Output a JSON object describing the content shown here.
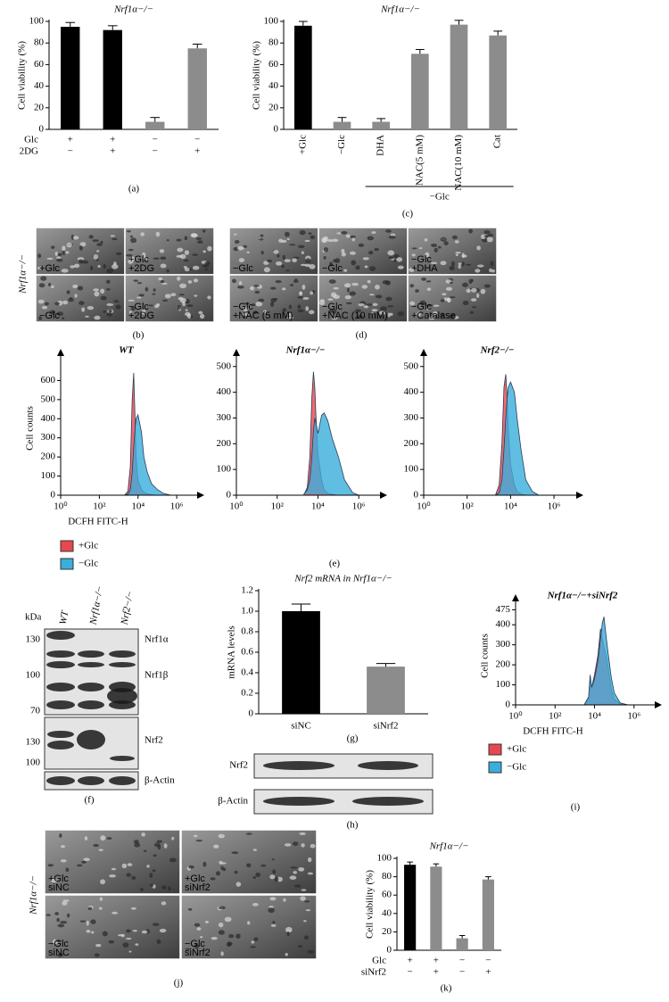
{
  "chart_data": [
    {
      "type": "bar",
      "title": "Nrf1α−/−",
      "ylabel": "Cell viability (%)",
      "ylim": [
        0,
        100
      ],
      "yticks": [
        0,
        20,
        40,
        60,
        80,
        100
      ],
      "values": [
        95,
        92,
        7,
        75
      ],
      "errors": [
        4,
        4,
        4,
        4
      ],
      "colors": [
        "#000000",
        "#000000",
        "#8c8c8c",
        "#8c8c8c"
      ],
      "rows": [
        {
          "label": "Glc",
          "values": [
            "+",
            "+",
            "−",
            "−"
          ]
        },
        {
          "label": "2DG",
          "values": [
            "−",
            "+",
            "−",
            "+"
          ]
        }
      ]
    },
    {
      "type": "bar",
      "title": "Nrf1α−/−",
      "ylabel": "Cell viability (%)",
      "ylim": [
        0,
        100
      ],
      "yticks": [
        0,
        20,
        40,
        60,
        80,
        100
      ],
      "categories": [
        "+Glc",
        "−Glc",
        "DHA",
        "NAC(5 mM)",
        "NAC(10 mM)",
        "Cat"
      ],
      "values": [
        96,
        7,
        7,
        70,
        97,
        87
      ],
      "errors": [
        4,
        4,
        3,
        4,
        4,
        4
      ],
      "colors": [
        "#000000",
        "#8c8c8c",
        "#8c8c8c",
        "#8c8c8c",
        "#8c8c8c",
        "#8c8c8c"
      ],
      "group_label": "−Glc"
    },
    {
      "type": "area",
      "title": "WT",
      "ylabel": "Cell counts",
      "xlabel": "DCFH FITC-H",
      "xlog": true,
      "xlim": [
        1,
        6000000
      ],
      "ylim": [
        0,
        700
      ],
      "yticks": [
        0,
        100,
        200,
        300,
        400,
        500,
        600
      ],
      "xticks": [
        {
          "value": 1,
          "label": "10⁰"
        },
        {
          "value": 100,
          "label": "10²"
        },
        {
          "value": 10000,
          "label": "10⁴"
        },
        {
          "value": 1000000,
          "label": "10⁶"
        }
      ],
      "x": [
        2000,
        3000,
        4000,
        5000,
        6000,
        7000,
        8000,
        10000,
        15000,
        20000,
        30000,
        50000,
        100000,
        200000,
        500000,
        1000000
      ],
      "series": [
        {
          "name": "+Glc",
          "color": "#e8474f",
          "values": [
            0,
            20,
            150,
            500,
            640,
            400,
            200,
            80,
            30,
            15,
            8,
            3,
            0,
            0,
            0,
            0
          ]
        },
        {
          "name": "−Glc",
          "color": "#3aaedc",
          "values": [
            0,
            5,
            30,
            120,
            250,
            350,
            400,
            420,
            330,
            200,
            120,
            60,
            30,
            10,
            0,
            0
          ]
        }
      ]
    },
    {
      "type": "area",
      "title": "Nrf1α−/−",
      "xlog": true,
      "xlim": [
        1,
        6000000
      ],
      "ylim": [
        0,
        520
      ],
      "yticks": [
        0,
        100,
        200,
        300,
        400,
        500
      ],
      "xticks": [
        {
          "value": 1,
          "label": "10⁰"
        },
        {
          "value": 100,
          "label": "10²"
        },
        {
          "value": 10000,
          "label": "10⁴"
        },
        {
          "value": 1000000,
          "label": "10⁶"
        }
      ],
      "x": [
        2000,
        3000,
        4000,
        5000,
        6000,
        7000,
        8000,
        10000,
        15000,
        20000,
        30000,
        50000,
        100000,
        200000,
        500000,
        1000000
      ],
      "series": [
        {
          "color": "#e8474f",
          "values": [
            0,
            30,
            150,
            380,
            480,
            420,
            300,
            160,
            60,
            20,
            8,
            3,
            0,
            0,
            0,
            0
          ]
        },
        {
          "color": "#3aaedc",
          "values": [
            5,
            20,
            60,
            150,
            250,
            300,
            280,
            240,
            310,
            320,
            290,
            220,
            150,
            60,
            10,
            0
          ]
        }
      ]
    },
    {
      "type": "area",
      "title": "Nrf2−/−",
      "xlog": true,
      "xlim": [
        1,
        6000000
      ],
      "ylim": [
        0,
        520
      ],
      "yticks": [
        0,
        100,
        200,
        300,
        400,
        500
      ],
      "xticks": [
        {
          "value": 1,
          "label": "10⁰"
        },
        {
          "value": 100,
          "label": "10²"
        },
        {
          "value": 10000,
          "label": "10⁴"
        },
        {
          "value": 1000000,
          "label": "10⁶"
        }
      ],
      "x": [
        2000,
        3000,
        4000,
        5000,
        6000,
        7000,
        8000,
        10000,
        15000,
        20000,
        30000,
        50000,
        100000,
        200000,
        500000,
        1000000
      ],
      "series": [
        {
          "color": "#e8474f",
          "values": [
            0,
            40,
            200,
            420,
            470,
            380,
            250,
            120,
            40,
            15,
            5,
            0,
            0,
            0,
            0,
            0
          ]
        },
        {
          "color": "#3aaedc",
          "values": [
            0,
            10,
            60,
            180,
            300,
            380,
            420,
            440,
            400,
            300,
            180,
            60,
            15,
            0,
            0,
            0
          ]
        }
      ]
    },
    {
      "type": "bar",
      "title": "Nrf2 mRNA in Nrf1α−/−",
      "ylabel": "mRNA levels",
      "ylim": [
        0,
        1.2
      ],
      "yticks": [
        0,
        0.2,
        0.4,
        0.6,
        0.8,
        {
          "value": 1,
          "label": "1.0"
        },
        1.2
      ],
      "categories": [
        "siNC",
        "siNrf2"
      ],
      "values": [
        1.0,
        0.46
      ],
      "errors": [
        0.07,
        0.03
      ],
      "colors": [
        "#000000",
        "#8c8c8c"
      ]
    },
    {
      "type": "area",
      "title": "Nrf1α−/−+siNrf2",
      "ylabel": "Cell counts",
      "xlabel": "DCFH FITC-H",
      "xlog": true,
      "xlim": [
        1,
        6000000
      ],
      "ylim": [
        0,
        490
      ],
      "yticks": [
        0,
        100,
        200,
        300,
        400,
        475
      ],
      "xticks": [
        {
          "value": 1,
          "label": "10⁰"
        },
        {
          "value": 100,
          "label": "10²"
        },
        {
          "value": 10000,
          "label": "10⁴"
        },
        {
          "value": 1000000,
          "label": "10⁶"
        }
      ],
      "x": [
        3000,
        5000,
        6000,
        7000,
        8000,
        10000,
        15000,
        20000,
        25000,
        30000,
        40000,
        50000,
        70000,
        100000,
        200000,
        500000
      ],
      "series": [
        {
          "name": "+Glc",
          "color": "#e8474f",
          "values": [
            0,
            30,
            140,
            80,
            110,
            150,
            250,
            380,
            330,
            290,
            240,
            180,
            80,
            30,
            5,
            0
          ]
        },
        {
          "name": "−Glc",
          "color": "#3aaedc",
          "values": [
            0,
            40,
            150,
            90,
            100,
            130,
            220,
            330,
            410,
            440,
            330,
            250,
            140,
            60,
            10,
            0
          ]
        }
      ]
    },
    {
      "type": "bar",
      "title": "Nrf1α−/−",
      "ylabel": "Cell viability (%)",
      "ylim": [
        0,
        100
      ],
      "yticks": [
        0,
        20,
        40,
        60,
        80,
        100
      ],
      "values": [
        93,
        91,
        13,
        77
      ],
      "errors": [
        3,
        3,
        3,
        3
      ],
      "colors": [
        "#000000",
        "#8c8c8c",
        "#8c8c8c",
        "#8c8c8c"
      ],
      "rows": [
        {
          "label": "Glc",
          "values": [
            "+",
            "+",
            "−",
            "−"
          ]
        },
        {
          "label": "siNrf2",
          "values": [
            "−",
            "+",
            "−",
            "+"
          ]
        }
      ]
    }
  ],
  "panel_labels": [
    "(a)",
    "(b)",
    "(c)",
    "(d)",
    "(e)",
    "(f)",
    "(g)",
    "(h)",
    "(i)",
    "(j)",
    "(k)"
  ],
  "panel_b": {
    "side_label": "Nrf1α−/−",
    "images": [
      [
        "+Glc"
      ],
      [
        "+Glc",
        "+2DG"
      ],
      [
        "−Glc"
      ],
      [
        "−Glc",
        "+2DG"
      ]
    ]
  },
  "panel_d": {
    "images": [
      [
        "−Glc"
      ],
      [
        "−Glc"
      ],
      [
        "−Glc",
        "+DHA"
      ],
      [
        "−Glc",
        "+NAC (5 mM)"
      ],
      [
        "−Glc",
        "+NAC (10 mM)"
      ],
      [
        "−Glc",
        "+Catalase"
      ]
    ]
  },
  "panel_f": {
    "kda": "kDa",
    "lanes": [
      "WT",
      "Nrf1α−/−",
      "Nrf2−/−"
    ],
    "markers": [
      "130",
      "100",
      "70",
      "130",
      "100"
    ],
    "bands": [
      "Nrf1α",
      "Nrf1β",
      "Nrf2",
      "β-Actin"
    ]
  },
  "panel_h": {
    "bands": [
      "Nrf2",
      "β-Actin"
    ]
  },
  "panel_j": {
    "side_label": "Nrf1α−/−",
    "images": [
      [
        "+Glc",
        "siNC"
      ],
      [
        "+Glc",
        "siNrf2"
      ],
      [
        "−Glc",
        "siNC"
      ],
      [
        "−Glc",
        "siNrf2"
      ]
    ]
  }
}
